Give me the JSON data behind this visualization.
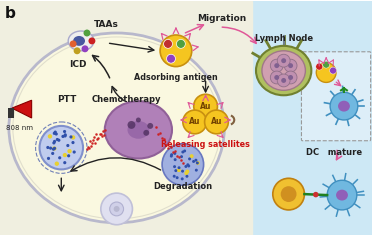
{
  "bg_right": "#cde8f5",
  "bg_left": "#f0efe0",
  "cell_fill": "#faf8e0",
  "cell_edge": "#b8b8cc",
  "nucleus_fill": "#b080b8",
  "nucleus_edge": "#906098",
  "gold_color": "#f5c520",
  "gold_dark": "#c89010",
  "blue_cof": "#8090cc",
  "blue_cof_light": "#c0ccee",
  "blue_deg": "#6878c0",
  "blue_deg_light": "#a0b0e0",
  "dot_blue": "#3050aa",
  "dot_yellow": "#e8d030",
  "arrow_black": "#222222",
  "arrow_pink": "#e05898",
  "red_label": "#cc1111",
  "label_b": "b",
  "label_808": "808 nm",
  "label_PTT": "PTT",
  "label_chemo": "Chemotherapy",
  "label_ICD": "ICD",
  "label_TAAs": "TAAs",
  "label_migration": "Migration",
  "label_lymph": "Lymph Node",
  "label_adsorb": "Adsorbing antigen",
  "label_release": "Releasing satellites",
  "label_degrade": "Degradation",
  "label_DC": "DC   mature",
  "dc_blue": "#70b8e0",
  "dc_edge": "#4090c0",
  "dc_nucleus": "#9060b8",
  "lymph_outer": "#a0b850",
  "lymph_inner": "#d0a0b8",
  "vesicle_fill": "#e0e0f0",
  "vesicle_edge": "#c0c0d8"
}
